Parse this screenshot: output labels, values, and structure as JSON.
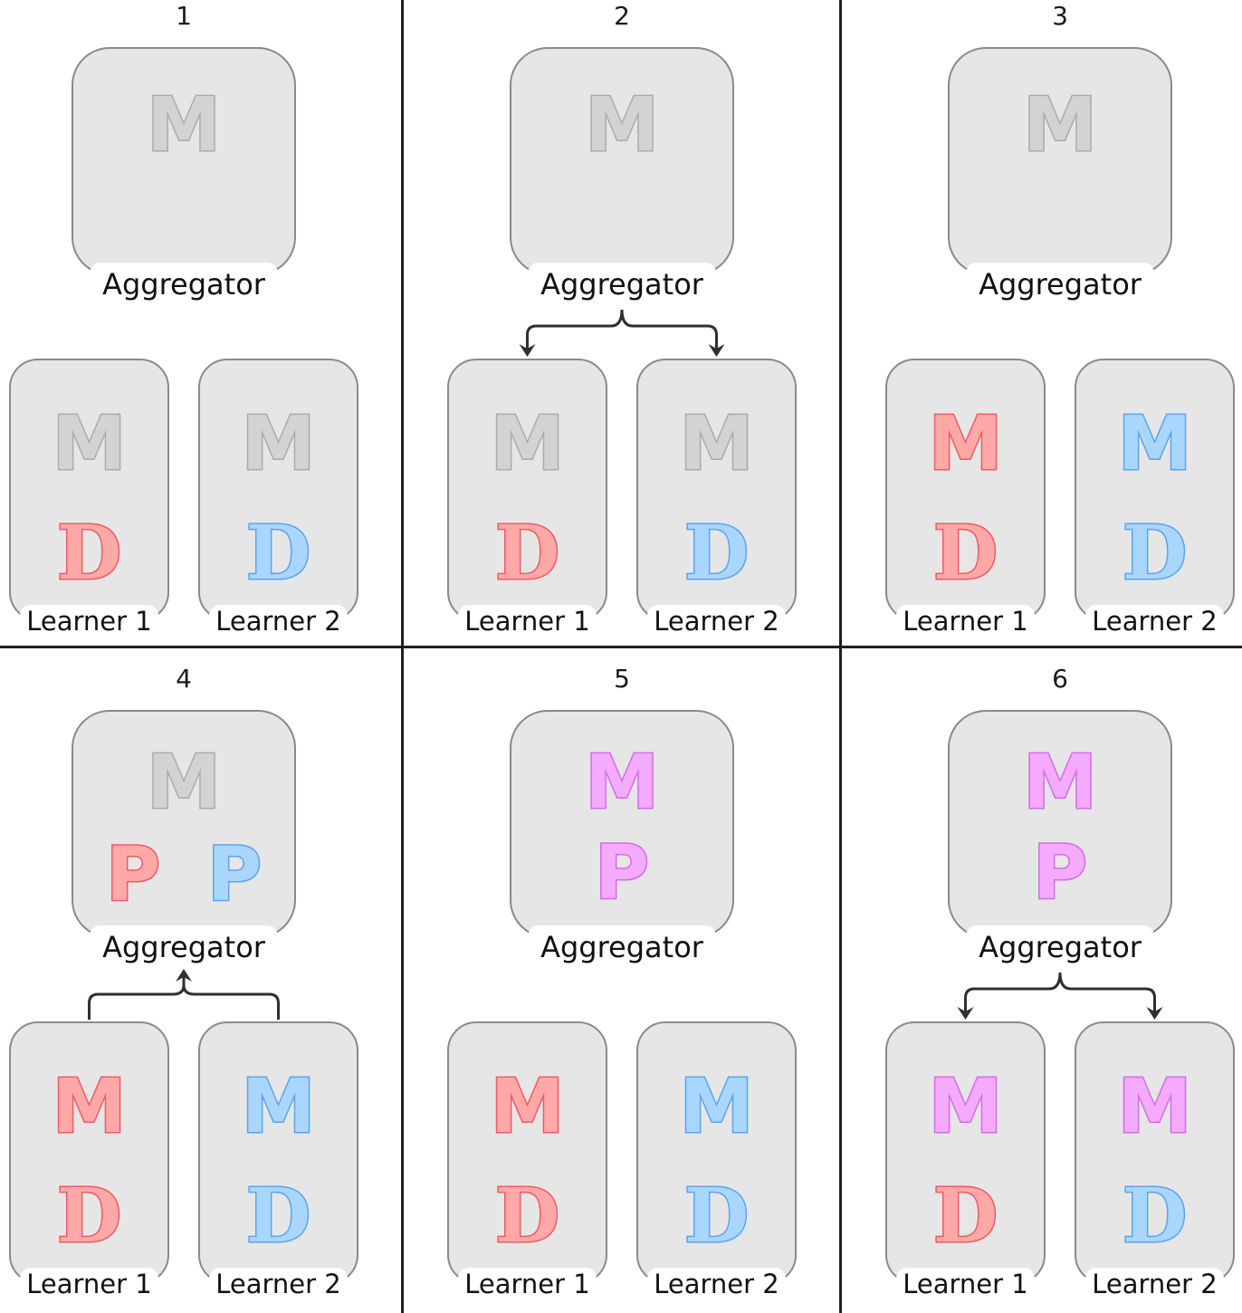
{
  "panels": [
    {
      "step": "1",
      "aggregator": {
        "label": "Aggregator",
        "glyphs": [
          {
            "letter": "M",
            "color": "gray"
          }
        ]
      },
      "learners": [
        {
          "label": "Learner 1",
          "glyphs": [
            {
              "letter": "M",
              "color": "gray"
            },
            {
              "letter": "D",
              "color": "red"
            }
          ],
          "training": false
        },
        {
          "label": "Learner 2",
          "glyphs": [
            {
              "letter": "M",
              "color": "gray"
            },
            {
              "letter": "D",
              "color": "blue"
            }
          ],
          "training": false
        }
      ],
      "flow": "none"
    },
    {
      "step": "2",
      "aggregator": {
        "label": "Aggregator",
        "glyphs": [
          {
            "letter": "M",
            "color": "gray"
          }
        ]
      },
      "learners": [
        {
          "label": "Learner 1",
          "glyphs": [
            {
              "letter": "M",
              "color": "gray"
            },
            {
              "letter": "D",
              "color": "red"
            }
          ],
          "training": true
        },
        {
          "label": "Learner 2",
          "glyphs": [
            {
              "letter": "M",
              "color": "gray"
            },
            {
              "letter": "D",
              "color": "blue"
            }
          ],
          "training": true
        }
      ],
      "flow": "down"
    },
    {
      "step": "3",
      "aggregator": {
        "label": "Aggregator",
        "glyphs": [
          {
            "letter": "M",
            "color": "gray"
          }
        ]
      },
      "learners": [
        {
          "label": "Learner 1",
          "glyphs": [
            {
              "letter": "M",
              "color": "red"
            },
            {
              "letter": "D",
              "color": "red"
            }
          ],
          "training": false
        },
        {
          "label": "Learner 2",
          "glyphs": [
            {
              "letter": "M",
              "color": "blue"
            },
            {
              "letter": "D",
              "color": "blue"
            }
          ],
          "training": false
        }
      ],
      "flow": "none"
    },
    {
      "step": "4",
      "aggregator": {
        "label": "Aggregator",
        "glyphs": [
          {
            "letter": "M",
            "color": "gray"
          },
          {
            "letter": "P",
            "color": "red"
          },
          {
            "letter": "P",
            "color": "blue"
          }
        ]
      },
      "learners": [
        {
          "label": "Learner 1",
          "glyphs": [
            {
              "letter": "M",
              "color": "red"
            },
            {
              "letter": "D",
              "color": "red"
            }
          ],
          "training": false
        },
        {
          "label": "Learner 2",
          "glyphs": [
            {
              "letter": "M",
              "color": "blue"
            },
            {
              "letter": "D",
              "color": "blue"
            }
          ],
          "training": false
        }
      ],
      "flow": "up"
    },
    {
      "step": "5",
      "aggregator": {
        "label": "Aggregator",
        "glyphs": [
          {
            "letter": "M",
            "color": "purple"
          },
          {
            "letter": "P",
            "color": "purple"
          }
        ]
      },
      "learners": [
        {
          "label": "Learner 1",
          "glyphs": [
            {
              "letter": "M",
              "color": "red"
            },
            {
              "letter": "D",
              "color": "red"
            }
          ],
          "training": false
        },
        {
          "label": "Learner 2",
          "glyphs": [
            {
              "letter": "M",
              "color": "blue"
            },
            {
              "letter": "D",
              "color": "blue"
            }
          ],
          "training": false
        }
      ],
      "flow": "none"
    },
    {
      "step": "6",
      "aggregator": {
        "label": "Aggregator",
        "glyphs": [
          {
            "letter": "M",
            "color": "purple"
          },
          {
            "letter": "P",
            "color": "purple"
          }
        ]
      },
      "learners": [
        {
          "label": "Learner 1",
          "glyphs": [
            {
              "letter": "M",
              "color": "purple"
            },
            {
              "letter": "D",
              "color": "red"
            }
          ],
          "training": true
        },
        {
          "label": "Learner 2",
          "glyphs": [
            {
              "letter": "M",
              "color": "purple"
            },
            {
              "letter": "D",
              "color": "blue"
            }
          ],
          "training": true
        }
      ],
      "flow": "down"
    }
  ],
  "colors": {
    "gray": "#ababab",
    "red": "#ef5a64",
    "blue": "#5aa3f0",
    "purple": "#d36ce6",
    "node_fill": "#e6e6e6",
    "arrow": "#2f2f2f"
  },
  "icons": {
    "training": "circular-arrow-icon",
    "flow_arrow": "bracket-arrow-icon"
  }
}
